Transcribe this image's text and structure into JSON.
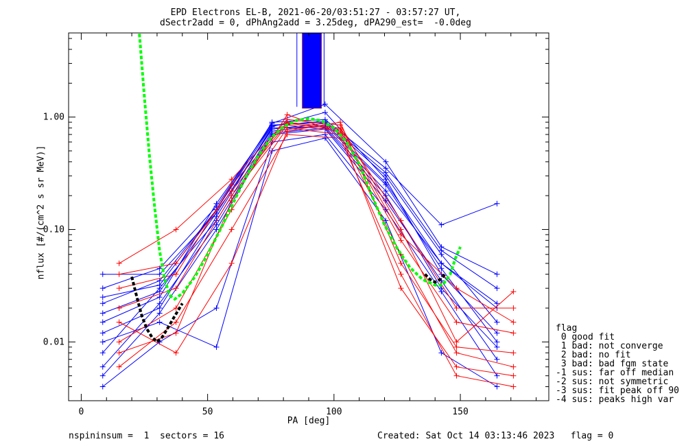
{
  "title_line1": "EPD Electrons EL-B, 2021-06-20/03:51:27 - 03:57:27 UT,",
  "title_line2": "dSectr2add = 0, dPhAng2add = 3.25deg, dPA290_est=  -0.0deg",
  "footer_left": "nspininsum =  1  sectors = 16",
  "footer_right": "Created: Sat Oct 14 03:13:46 2023   flag = 0",
  "legend": {
    "title": "flag",
    "items": [
      " 0 good fit",
      " 1 bad: not converge",
      " 2 bad: no fit",
      " 3 bad: bad fgm state",
      "-1 sus: far off median",
      "-2 sus: not symmetric",
      "-3 sus: fit peak off 90",
      "-4 sus: peaks high var"
    ]
  },
  "colors": {
    "blue": "#0000ff",
    "red": "#ff0000",
    "fit": "#00ff00",
    "black": "#000000"
  },
  "chart_data": {
    "type": "line",
    "xlabel": "PA [deg]",
    "ylabel": "nflux [#/(cm^2 s sr MeV)]",
    "xlim": [
      -5,
      185
    ],
    "ylim": [
      0.003,
      5.6
    ],
    "yscale": "log",
    "x_ticks": [
      0,
      50,
      100,
      150
    ],
    "x_tick_labels": [
      "0",
      "50",
      "100",
      "150"
    ],
    "y_ticks": [
      0.01,
      0.1,
      1.0
    ],
    "y_tick_labels": [
      "0.01",
      "0.10",
      "1.00"
    ],
    "grid": false,
    "pa_bins": [
      8.5,
      15,
      31,
      37.5,
      53.5,
      59.5,
      75.5,
      81.5,
      96.5,
      102.5,
      120.5,
      126.5,
      142.5,
      148.5,
      164.5,
      171
    ],
    "series": [
      {
        "color": "blue",
        "x": [
          8.5,
          31,
          53.5,
          75.5,
          96.5,
          120.5,
          142.5,
          164.5
        ],
        "y": [
          0.04,
          0.04,
          0.14,
          0.8,
          0.82,
          0.22,
          0.05,
          0.02
        ]
      },
      {
        "color": "blue",
        "x": [
          8.5,
          31,
          53.5,
          75.5,
          96.5,
          120.5,
          142.5,
          164.5
        ],
        "y": [
          0.015,
          0.025,
          0.17,
          0.85,
          0.9,
          0.3,
          0.06,
          0.015
        ]
      },
      {
        "color": "blue",
        "x": [
          8.5,
          31,
          53.5,
          75.5,
          96.5,
          120.5,
          142.5,
          164.5
        ],
        "y": [
          0.008,
          0.03,
          0.12,
          0.75,
          0.85,
          0.25,
          0.045,
          0.01
        ]
      },
      {
        "color": "blue",
        "x": [
          8.5,
          31,
          53.5,
          75.5,
          96.5,
          120.5,
          142.5,
          164.5
        ],
        "y": [
          0.005,
          0.018,
          0.1,
          0.7,
          0.78,
          0.18,
          0.035,
          0.007
        ]
      },
      {
        "color": "blue",
        "x": [
          8.5,
          31,
          53.5,
          75.5,
          96.5,
          120.5,
          142.5,
          164.5
        ],
        "y": [
          0.022,
          0.035,
          0.15,
          0.9,
          0.95,
          0.35,
          0.11,
          0.17
        ]
      },
      {
        "color": "blue",
        "x": [
          8.5,
          31,
          53.5,
          75.5,
          96.5,
          120.5,
          142.5,
          164.5
        ],
        "y": [
          0.012,
          0.02,
          0.13,
          0.82,
          1.1,
          0.28,
          0.04,
          0.012
        ]
      },
      {
        "color": "blue",
        "x": [
          8.5,
          31,
          53.5,
          75.5,
          96.5,
          120.5,
          142.5,
          164.5
        ],
        "y": [
          0.004,
          0.01,
          0.02,
          0.6,
          0.7,
          0.15,
          0.028,
          0.005
        ]
      },
      {
        "color": "blue",
        "x": [
          8.5,
          31,
          53.5,
          75.5,
          96.5,
          120.5,
          142.5,
          164.5
        ],
        "y": [
          0.03,
          0.045,
          0.16,
          0.88,
          1.3,
          0.4,
          0.07,
          0.04
        ]
      },
      {
        "color": "blue",
        "x": [
          8.5,
          31,
          53.5,
          75.5,
          96.5,
          120.5,
          142.5,
          164.5
        ],
        "y": [
          0.01,
          0.015,
          0.009,
          0.5,
          0.65,
          0.12,
          0.008,
          0.004
        ]
      },
      {
        "color": "blue",
        "x": [
          8.5,
          31,
          53.5,
          75.5,
          96.5,
          120.5,
          142.5,
          164.5
        ],
        "y": [
          0.018,
          0.028,
          0.14,
          0.78,
          0.88,
          0.26,
          0.05,
          0.022
        ]
      },
      {
        "color": "blue",
        "x": [
          8.5,
          31,
          53.5,
          75.5,
          96.5,
          120.5,
          142.5,
          164.5
        ],
        "y": [
          0.006,
          0.022,
          0.11,
          0.72,
          0.8,
          0.2,
          0.03,
          0.009
        ]
      },
      {
        "color": "blue",
        "x": [
          8.5,
          31,
          53.5,
          75.5,
          96.5,
          120.5,
          142.5,
          164.5
        ],
        "y": [
          0.025,
          0.032,
          0.15,
          0.84,
          0.92,
          0.32,
          0.065,
          0.03
        ]
      },
      {
        "color": "red",
        "x": [
          15,
          37.5,
          59.5,
          81.5,
          102.5,
          126.5,
          148.5,
          171
        ],
        "y": [
          0.05,
          0.1,
          0.28,
          0.95,
          0.85,
          0.1,
          0.01,
          0.028
        ]
      },
      {
        "color": "red",
        "x": [
          15,
          37.5,
          59.5,
          81.5,
          102.5,
          126.5,
          148.5,
          171
        ],
        "y": [
          0.02,
          0.03,
          0.2,
          0.85,
          0.75,
          0.08,
          0.015,
          0.012
        ]
      },
      {
        "color": "red",
        "x": [
          15,
          37.5,
          59.5,
          81.5,
          102.5,
          126.5,
          148.5,
          171
        ],
        "y": [
          0.01,
          0.02,
          0.15,
          0.8,
          0.7,
          0.06,
          0.008,
          0.006
        ]
      },
      {
        "color": "red",
        "x": [
          15,
          37.5,
          59.5,
          81.5,
          102.5,
          126.5,
          148.5,
          171
        ],
        "y": [
          0.006,
          0.015,
          0.1,
          0.7,
          0.65,
          0.04,
          0.005,
          0.004
        ]
      },
      {
        "color": "red",
        "x": [
          15,
          37.5,
          59.5,
          81.5,
          102.5,
          126.5,
          148.5,
          171
        ],
        "y": [
          0.03,
          0.04,
          0.25,
          0.9,
          0.8,
          0.12,
          0.02,
          0.02
        ]
      },
      {
        "color": "red",
        "x": [
          15,
          37.5,
          59.5,
          81.5,
          102.5,
          126.5,
          148.5,
          171
        ],
        "y": [
          0.015,
          0.008,
          0.05,
          0.75,
          0.9,
          0.05,
          0.009,
          0.008
        ]
      },
      {
        "color": "red",
        "x": [
          15,
          37.5,
          59.5,
          81.5,
          102.5,
          126.5,
          148.5,
          171
        ],
        "y": [
          0.008,
          0.012,
          0.18,
          1.05,
          0.72,
          0.03,
          0.006,
          0.005
        ]
      },
      {
        "color": "red",
        "x": [
          15,
          37.5,
          59.5,
          81.5,
          102.5,
          126.5,
          148.5,
          171
        ],
        "y": [
          0.04,
          0.05,
          0.22,
          0.88,
          0.78,
          0.09,
          0.03,
          0.015
        ]
      }
    ],
    "spike": {
      "color": "blue",
      "x_from": 87.5,
      "x_to": 95,
      "y_from": 1.2,
      "y_to": 5.6
    },
    "fit_curve": {
      "color": "fit",
      "x": [
        23,
        25,
        27,
        29,
        31,
        33,
        35,
        37,
        40,
        45,
        50,
        55,
        60,
        65,
        70,
        75,
        80,
        85,
        90,
        95,
        100,
        105,
        110,
        115,
        120,
        125,
        130,
        135,
        140,
        143,
        146,
        148,
        150
      ],
      "y": [
        5.5,
        1.5,
        0.45,
        0.16,
        0.065,
        0.036,
        0.026,
        0.024,
        0.027,
        0.038,
        0.06,
        0.1,
        0.17,
        0.29,
        0.45,
        0.65,
        0.82,
        0.93,
        0.97,
        0.93,
        0.8,
        0.6,
        0.38,
        0.2,
        0.11,
        0.068,
        0.046,
        0.036,
        0.032,
        0.032,
        0.04,
        0.055,
        0.07
      ]
    },
    "black_curve": {
      "color": "black",
      "x": [
        20,
        22,
        24,
        26,
        28,
        30,
        32,
        34,
        37,
        40
      ],
      "y": [
        0.038,
        0.025,
        0.017,
        0.013,
        0.011,
        0.01,
        0.011,
        0.013,
        0.017,
        0.022
      ]
    },
    "black_curve2": {
      "color": "black",
      "x": [
        136,
        138,
        140,
        142,
        144
      ],
      "y": [
        0.04,
        0.036,
        0.034,
        0.036,
        0.04
      ]
    }
  }
}
